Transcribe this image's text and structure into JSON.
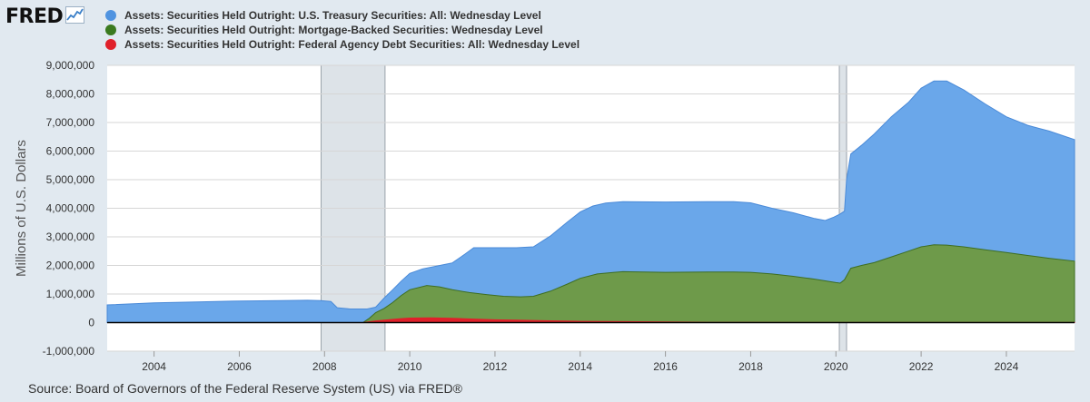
{
  "header": {
    "logo_text": "FRED",
    "logo_icon": "line-chart-icon"
  },
  "legend": [
    {
      "label": "Assets: Securities Held Outright: U.S. Treasury Securities: All: Wednesday Level",
      "color": "#4f93e0"
    },
    {
      "label": "Assets: Securities Held Outright: Mortgage-Backed Securities: Wednesday Level",
      "color": "#3b7a1f"
    },
    {
      "label": "Assets: Securities Held Outright: Federal Agency Debt Securities: All: Wednesday Level",
      "color": "#e0202a"
    }
  ],
  "source": "Source: Board of Governors of the Federal Reserve System (US) via FRED®",
  "chart_data": {
    "type": "area",
    "title": "",
    "ylabel": "Millions of U.S. Dollars",
    "xlabel": "",
    "xlim": [
      2002.9,
      2025.6
    ],
    "ylim": [
      -1000000,
      9000000
    ],
    "x_ticks": [
      2004,
      2006,
      2008,
      2010,
      2012,
      2014,
      2016,
      2018,
      2020,
      2022,
      2024
    ],
    "x_tick_labels": [
      "2004",
      "2006",
      "2008",
      "2010",
      "2012",
      "2014",
      "2016",
      "2018",
      "2020",
      "2022",
      "2024"
    ],
    "y_ticks": [
      -1000000,
      0,
      1000000,
      2000000,
      3000000,
      4000000,
      5000000,
      6000000,
      7000000,
      8000000,
      9000000
    ],
    "y_tick_labels": [
      "-1,000,000",
      "0",
      "1,000,000",
      "2,000,000",
      "3,000,000",
      "4,000,000",
      "5,000,000",
      "6,000,000",
      "7,000,000",
      "8,000,000",
      "9,000,000"
    ],
    "grid": true,
    "legend_position": "top-left",
    "recessions": [
      [
        2007.92,
        2009.42
      ],
      [
        2020.08,
        2020.25
      ]
    ],
    "colors": {
      "treasury": "#6aa7ea",
      "treasury_line": "#4a8ad8",
      "mbs": "#6e9a4a",
      "mbs_line": "#3e6e22",
      "agency": "#e0202a",
      "recession": "#dde3e8",
      "recession_edge": "#9aa3ab"
    },
    "series": [
      {
        "name": "Assets: Securities Held Outright: U.S. Treasury Securities: All: Wednesday Level",
        "x": [
          2002.9,
          2004,
          2005,
          2006,
          2007,
          2007.6,
          2007.9,
          2008.15,
          2008.3,
          2008.6,
          2009.0,
          2009.2,
          2009.4,
          2009.6,
          2009.8,
          2010.0,
          2010.3,
          2010.8,
          2011.0,
          2011.3,
          2011.5,
          2012.0,
          2012.5,
          2012.9,
          2013.3,
          2013.7,
          2014.0,
          2014.3,
          2014.6,
          2015.0,
          2016.0,
          2017.0,
          2017.6,
          2018.0,
          2018.5,
          2019.0,
          2019.5,
          2019.75,
          2019.95,
          2020.1,
          2020.2,
          2020.25,
          2020.35,
          2020.6,
          2020.9,
          2021.3,
          2021.7,
          2022.0,
          2022.3,
          2022.6,
          2023.0,
          2023.5,
          2024.0,
          2024.5,
          2025.0,
          2025.6
        ],
        "values": [
          620000,
          690000,
          720000,
          755000,
          770000,
          780000,
          770000,
          740000,
          520000,
          475000,
          475000,
          540000,
          860000,
          1150000,
          1450000,
          1720000,
          1880000,
          2030000,
          2090000,
          2400000,
          2620000,
          2620000,
          2620000,
          2650000,
          3030000,
          3520000,
          3870000,
          4080000,
          4180000,
          4230000,
          4220000,
          4230000,
          4230000,
          4190000,
          4000000,
          3840000,
          3640000,
          3570000,
          3690000,
          3800000,
          3900000,
          5000000,
          5900000,
          6200000,
          6600000,
          7200000,
          7700000,
          8200000,
          8450000,
          8450000,
          8140000,
          7650000,
          7200000,
          6900000,
          6700000,
          6400000
        ]
      },
      {
        "name": "Assets: Securities Held Outright: Mortgage-Backed Securities: Wednesday Level",
        "x": [
          2002.9,
          2008.9,
          2009.05,
          2009.2,
          2009.4,
          2009.6,
          2009.8,
          2010.0,
          2010.4,
          2010.7,
          2011.0,
          2011.4,
          2011.8,
          2012.2,
          2012.6,
          2012.9,
          2013.3,
          2013.7,
          2014.0,
          2014.4,
          2014.8,
          2015.0,
          2016.0,
          2017.0,
          2017.6,
          2018.0,
          2018.5,
          2019.0,
          2019.5,
          2020.0,
          2020.1,
          2020.2,
          2020.35,
          2020.6,
          2020.9,
          2021.3,
          2021.7,
          2022.0,
          2022.3,
          2022.6,
          2023.0,
          2023.5,
          2024.0,
          2024.5,
          2025.0,
          2025.6
        ],
        "values": [
          0,
          0,
          150000,
          350000,
          500000,
          700000,
          950000,
          1150000,
          1300000,
          1250000,
          1150000,
          1050000,
          980000,
          920000,
          900000,
          920000,
          1100000,
          1350000,
          1550000,
          1700000,
          1760000,
          1780000,
          1760000,
          1770000,
          1770000,
          1760000,
          1700000,
          1620000,
          1520000,
          1400000,
          1380000,
          1500000,
          1900000,
          2000000,
          2100000,
          2300000,
          2500000,
          2650000,
          2720000,
          2710000,
          2650000,
          2550000,
          2450000,
          2350000,
          2250000,
          2150000
        ]
      },
      {
        "name": "Assets: Securities Held Outright: Federal Agency Debt Securities: All: Wednesday Level",
        "x": [
          2002.9,
          2008.9,
          2009.0,
          2009.2,
          2009.5,
          2009.8,
          2010.0,
          2010.5,
          2011.0,
          2011.5,
          2012.0,
          2012.5,
          2013.0,
          2014.0,
          2015.0,
          2016.0,
          2017.0,
          2018.0,
          2019.0,
          2020.0,
          2021.0,
          2022.0,
          2023.0,
          2024.0,
          2025.6
        ],
        "values": [
          0,
          0,
          20000,
          60000,
          100000,
          140000,
          160000,
          165000,
          150000,
          125000,
          100000,
          85000,
          70000,
          45000,
          35000,
          25000,
          10000,
          5000,
          2500,
          2300,
          2300,
          2300,
          2300,
          2300,
          2300
        ]
      }
    ]
  }
}
